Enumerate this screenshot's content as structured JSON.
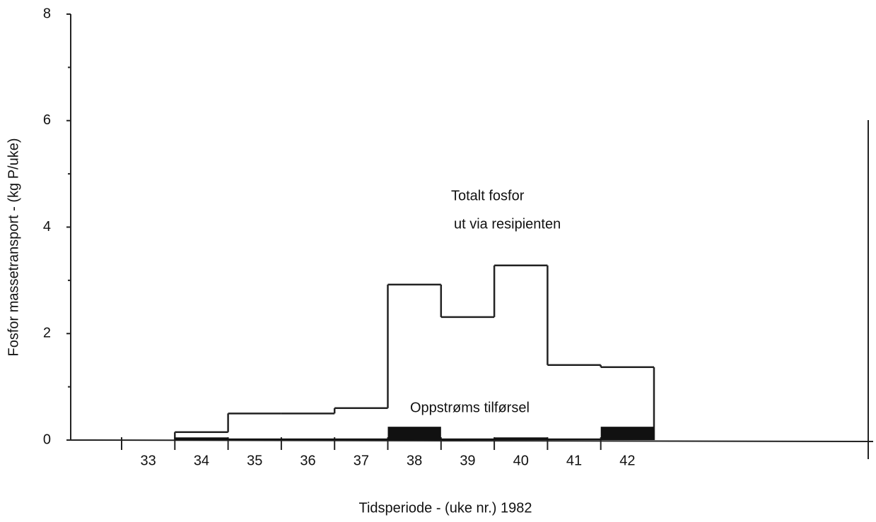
{
  "chart_data": {
    "type": "step",
    "ylabel": "Fosfor massetransport - (kg P/uke)",
    "xlabel": "Tidsperiode  - (uke nr.)  1982",
    "annotations": [
      "Totalt fosfor",
      "ut via resipienten",
      "Oppstrøms  tilførsel"
    ],
    "categories": [
      "33",
      "34",
      "35",
      "36",
      "37",
      "38",
      "39",
      "40",
      "41",
      "42"
    ],
    "series": [
      {
        "color": "#222222",
        "style": "line",
        "values": [
          null,
          0.15,
          0.5,
          0.5,
          0.6,
          2.92,
          2.31,
          3.28,
          1.41,
          1.37
        ]
      },
      {
        "color": "#111111",
        "style": "filled",
        "values": [
          null,
          0.05,
          0.03,
          0.03,
          0.03,
          0.25,
          0.03,
          0.05,
          0.03,
          0.25
        ]
      }
    ],
    "ylim": [
      0,
      8
    ],
    "yticks": [
      0,
      2,
      4,
      6,
      8
    ],
    "minor_yticks": [
      1,
      3,
      5,
      7
    ],
    "grid": false
  }
}
